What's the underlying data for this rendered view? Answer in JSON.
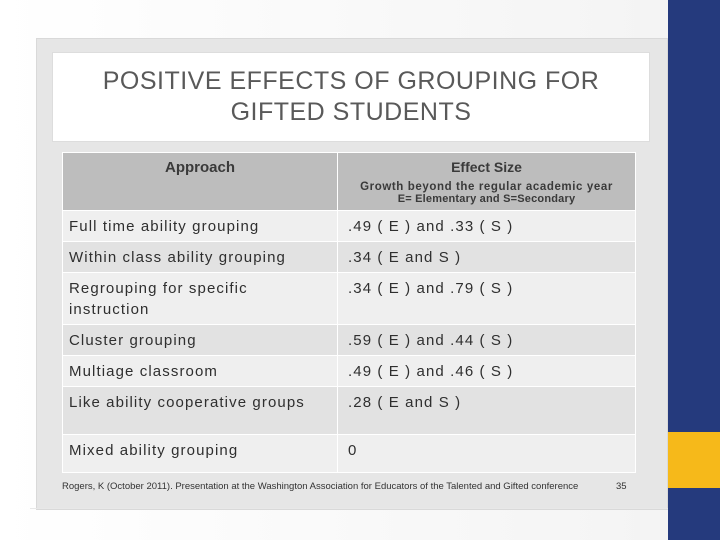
{
  "slide": {
    "title": "POSITIVE EFFECTS OF GROUPING FOR GIFTED STUDENTS",
    "table": {
      "header": {
        "approach": "Approach",
        "effect_size": "Effect Size",
        "effect_note_1": "Growth beyond the regular academic year",
        "effect_note_2": "E= Elementary and S=Secondary"
      },
      "rows": [
        {
          "approach": "Full time ability grouping",
          "effect": ".49 ( E ) and .33 ( S )"
        },
        {
          "approach": "Within class ability grouping",
          "effect": ".34 ( E and S )"
        },
        {
          "approach": "Regrouping for specific instruction",
          "effect": ".34 ( E ) and .79 ( S )"
        },
        {
          "approach": "Cluster grouping",
          "effect": ".59 ( E ) and .44 ( S )"
        },
        {
          "approach": "Multiage classroom",
          "effect": ".49 ( E ) and .46 ( S )"
        },
        {
          "approach": "Like ability cooperative groups",
          "effect": ".28 ( E and S )"
        },
        {
          "approach": "Mixed ability grouping",
          "effect": "0"
        }
      ]
    },
    "footer": {
      "citation": "Rogers, K (October 2011). Presentation at the Washington Association for Educators of the Talented and Gifted conference",
      "page_number": "35"
    }
  },
  "colors": {
    "accent_navy": "#253a7d",
    "accent_gold": "#f6b91a",
    "header_gray": "#bdbdbd"
  }
}
